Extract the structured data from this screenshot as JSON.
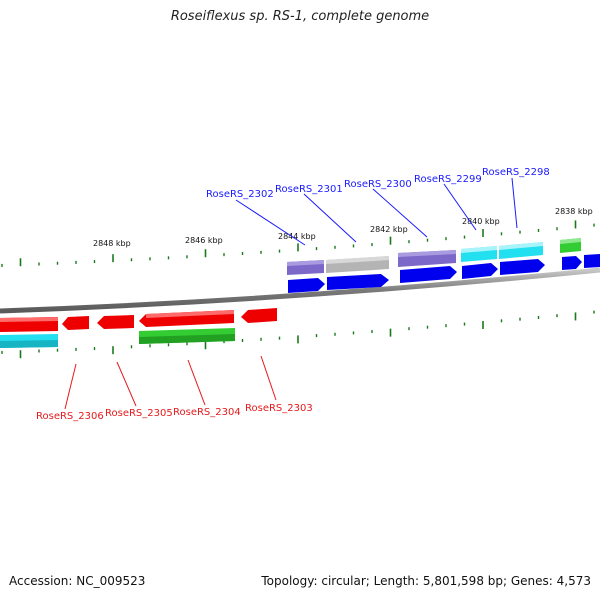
{
  "title": "Roseiflexus sp. RS-1, complete genome",
  "footer": {
    "accession": "Accession: NC_009523",
    "info": "Topology: circular; Length: 5,801,598 bp; Genes: 4,573"
  },
  "colors": {
    "backbone": "#8c8c8c",
    "cds_forward": "#0000ee",
    "cds_reverse": "#ee0000",
    "cog_purple": "#7b68c8",
    "cog_grey": "#b4b4b4",
    "cog_cyan": "#22e0f0",
    "cog_green": "#33cc33",
    "tick": "#1a7a1a",
    "label_forward": "#1a1aff",
    "label_reverse": "#e41a1c"
  },
  "scale_labels": [
    "2848 kbp",
    "2846 kbp",
    "2844 kbp",
    "2842 kbp",
    "2840 kbp",
    "2838 kbp"
  ],
  "labels_forward": [
    "RoseRS_2302",
    "RoseRS_2301",
    "RoseRS_2300",
    "RoseRS_2299",
    "RoseRS_2298"
  ],
  "labels_reverse": [
    "RoseRS_2306",
    "RoseRS_2305",
    "RoseRS_2304",
    "RoseRS_2303"
  ]
}
